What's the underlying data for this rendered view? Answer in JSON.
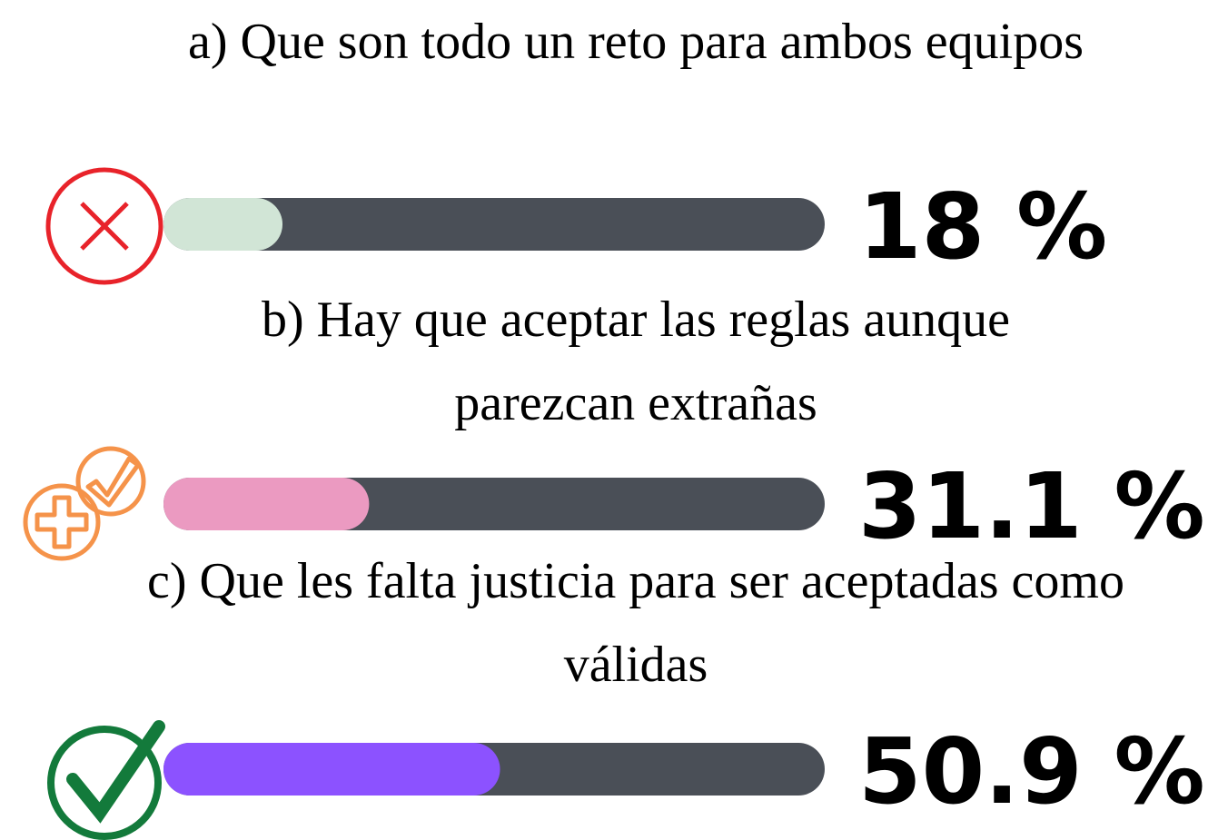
{
  "chart_data": {
    "type": "progress",
    "categories": [
      "a) Que son todo un reto para ambos equipos",
      "b) Hay que aceptar las reglas aunque parezcan extrañas",
      "c) Que les falta justicia para ser aceptadas como válidas"
    ],
    "values": [
      18,
      31.1,
      50.9
    ],
    "value_labels": [
      "18 %",
      "31.1 %",
      "50.9 %"
    ],
    "colors": [
      "#d1e5d6",
      "#eb9ac1",
      "#8c52ff"
    ],
    "track_color": "#4a4f57",
    "xlim": [
      0,
      100
    ]
  }
}
